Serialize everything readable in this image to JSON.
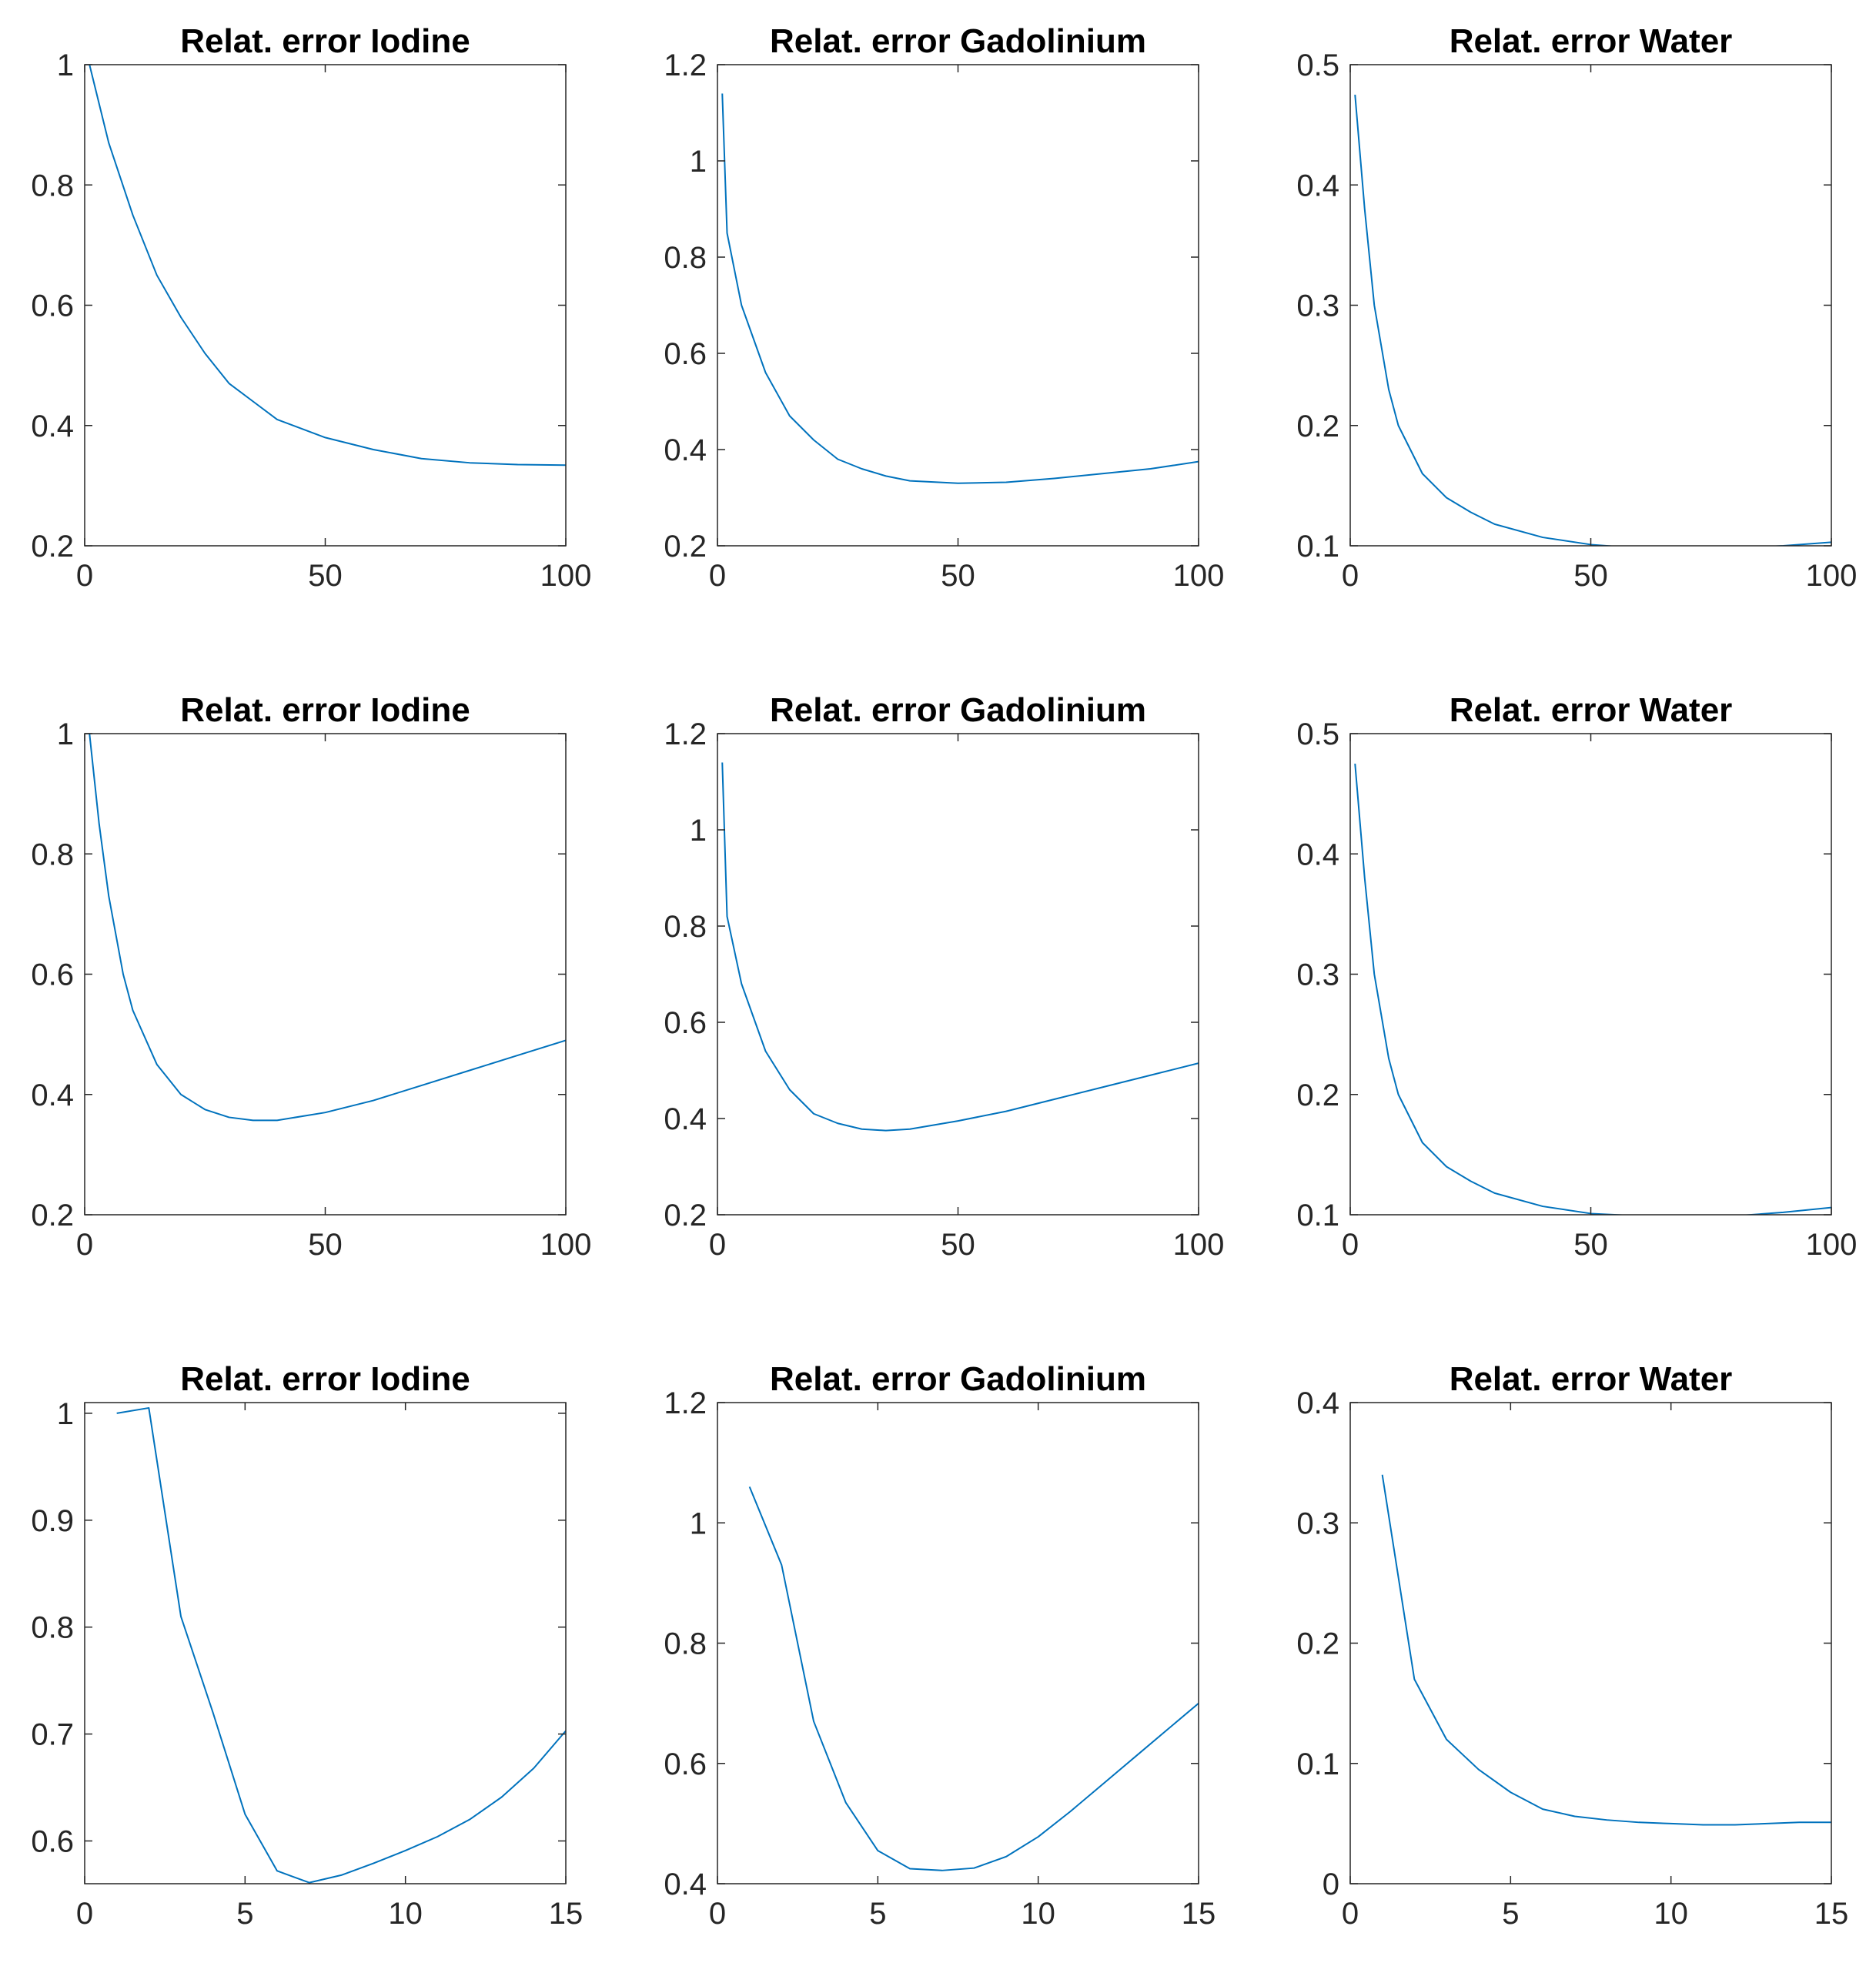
{
  "colors": {
    "line": "#0072BD",
    "axis": "#262626",
    "background": "#ffffff"
  },
  "chart_data": [
    {
      "type": "line",
      "title": "Relat. error Iodine",
      "xlabel": "",
      "ylabel": "",
      "xlim": [
        0,
        100
      ],
      "ylim": [
        0.2,
        1
      ],
      "xticks": [
        0,
        50,
        100
      ],
      "xtick_labels": [
        "0",
        "50",
        "100"
      ],
      "yticks": [
        0.2,
        0.4,
        0.6,
        0.8,
        1
      ],
      "ytick_labels": [
        "0.2",
        "0.4",
        "0.6",
        "0.8",
        "1"
      ],
      "series": [
        {
          "name": "Relat. error Iodine",
          "x": [
            1,
            5,
            10,
            15,
            20,
            25,
            30,
            35,
            40,
            50,
            60,
            70,
            80,
            90,
            100
          ],
          "y": [
            1.0,
            0.87,
            0.75,
            0.65,
            0.58,
            0.52,
            0.47,
            0.44,
            0.41,
            0.38,
            0.36,
            0.345,
            0.338,
            0.335,
            0.334
          ]
        }
      ]
    },
    {
      "type": "line",
      "title": "Relat. error Gadolinium",
      "xlabel": "",
      "ylabel": "",
      "xlim": [
        0,
        100
      ],
      "ylim": [
        0.2,
        1.2
      ],
      "xticks": [
        0,
        50,
        100
      ],
      "xtick_labels": [
        "0",
        "50",
        "100"
      ],
      "yticks": [
        0.2,
        0.4,
        0.6,
        0.8,
        1,
        1.2
      ],
      "ytick_labels": [
        "0.2",
        "0.4",
        "0.6",
        "0.8",
        "1",
        "1.2"
      ],
      "series": [
        {
          "name": "Relat. error Gadolinium",
          "x": [
            1,
            2,
            5,
            10,
            15,
            20,
            25,
            30,
            35,
            40,
            50,
            60,
            70,
            80,
            90,
            100
          ],
          "y": [
            1.14,
            0.85,
            0.7,
            0.56,
            0.47,
            0.42,
            0.38,
            0.36,
            0.345,
            0.335,
            0.33,
            0.332,
            0.34,
            0.35,
            0.36,
            0.375
          ]
        }
      ]
    },
    {
      "type": "line",
      "title": "Relat. error Water",
      "xlabel": "",
      "ylabel": "",
      "xlim": [
        0,
        100
      ],
      "ylim": [
        0.1,
        0.5
      ],
      "xticks": [
        0,
        50,
        100
      ],
      "xtick_labels": [
        "0",
        "50",
        "100"
      ],
      "yticks": [
        0.1,
        0.2,
        0.3,
        0.4,
        0.5
      ],
      "ytick_labels": [
        "0.1",
        "0.2",
        "0.3",
        "0.4",
        "0.5"
      ],
      "series": [
        {
          "name": "Relat. error Water",
          "x": [
            1,
            3,
            5,
            8,
            10,
            15,
            20,
            25,
            30,
            40,
            50,
            60,
            70,
            80,
            90,
            100
          ],
          "y": [
            0.475,
            0.38,
            0.3,
            0.23,
            0.2,
            0.16,
            0.14,
            0.128,
            0.118,
            0.107,
            0.101,
            0.098,
            0.097,
            0.098,
            0.1,
            0.103
          ]
        }
      ]
    },
    {
      "type": "line",
      "title": "Relat. error Iodine",
      "xlabel": "",
      "ylabel": "",
      "xlim": [
        0,
        100
      ],
      "ylim": [
        0.2,
        1
      ],
      "xticks": [
        0,
        50,
        100
      ],
      "xtick_labels": [
        "0",
        "50",
        "100"
      ],
      "yticks": [
        0.2,
        0.4,
        0.6,
        0.8,
        1
      ],
      "ytick_labels": [
        "0.2",
        "0.4",
        "0.6",
        "0.8",
        "1"
      ],
      "series": [
        {
          "name": "Relat. error Iodine",
          "x": [
            1,
            3,
            5,
            8,
            10,
            15,
            20,
            25,
            30,
            35,
            40,
            50,
            60,
            70,
            80,
            90,
            100
          ],
          "y": [
            1.0,
            0.85,
            0.73,
            0.6,
            0.54,
            0.45,
            0.4,
            0.375,
            0.362,
            0.357,
            0.357,
            0.37,
            0.39,
            0.415,
            0.44,
            0.465,
            0.49
          ]
        }
      ]
    },
    {
      "type": "line",
      "title": "Relat. error Gadolinium",
      "xlabel": "",
      "ylabel": "",
      "xlim": [
        0,
        100
      ],
      "ylim": [
        0.2,
        1.2
      ],
      "xticks": [
        0,
        50,
        100
      ],
      "xtick_labels": [
        "0",
        "50",
        "100"
      ],
      "yticks": [
        0.2,
        0.4,
        0.6,
        0.8,
        1,
        1.2
      ],
      "ytick_labels": [
        "0.2",
        "0.4",
        "0.6",
        "0.8",
        "1",
        "1.2"
      ],
      "series": [
        {
          "name": "Relat. error Gadolinium",
          "x": [
            1,
            2,
            5,
            10,
            15,
            20,
            25,
            30,
            35,
            40,
            50,
            60,
            70,
            80,
            90,
            100
          ],
          "y": [
            1.14,
            0.82,
            0.68,
            0.54,
            0.46,
            0.41,
            0.39,
            0.378,
            0.375,
            0.378,
            0.395,
            0.415,
            0.44,
            0.465,
            0.49,
            0.515
          ]
        }
      ]
    },
    {
      "type": "line",
      "title": "Relat. error Water",
      "xlabel": "",
      "ylabel": "",
      "xlim": [
        0,
        100
      ],
      "ylim": [
        0.1,
        0.5
      ],
      "xticks": [
        0,
        50,
        100
      ],
      "xtick_labels": [
        "0",
        "50",
        "100"
      ],
      "yticks": [
        0.1,
        0.2,
        0.3,
        0.4,
        0.5
      ],
      "ytick_labels": [
        "0.1",
        "0.2",
        "0.3",
        "0.4",
        "0.5"
      ],
      "series": [
        {
          "name": "Relat. error Water",
          "x": [
            1,
            3,
            5,
            8,
            10,
            15,
            20,
            25,
            30,
            40,
            50,
            60,
            70,
            80,
            90,
            100
          ],
          "y": [
            0.475,
            0.38,
            0.3,
            0.23,
            0.2,
            0.16,
            0.14,
            0.128,
            0.118,
            0.107,
            0.101,
            0.099,
            0.098,
            0.099,
            0.102,
            0.106
          ]
        }
      ]
    },
    {
      "type": "line",
      "title": "Relat. error Iodine",
      "xlabel": "",
      "ylabel": "",
      "xlim": [
        0,
        15
      ],
      "ylim": [
        0.56,
        1.01
      ],
      "xticks": [
        0,
        5,
        10,
        15
      ],
      "xtick_labels": [
        "0",
        "5",
        "10",
        "15"
      ],
      "yticks": [
        0.6,
        0.7,
        0.8,
        0.9,
        1
      ],
      "ytick_labels": [
        "0.6",
        "0.7",
        "0.8",
        "0.9",
        "1"
      ],
      "series": [
        {
          "name": "Relat. error Iodine",
          "x": [
            1,
            2,
            3,
            4,
            5,
            6,
            7,
            8,
            9,
            10,
            11,
            12,
            13,
            14,
            15
          ],
          "y": [
            1.0,
            1.005,
            0.81,
            0.72,
            0.625,
            0.572,
            0.561,
            0.568,
            0.579,
            0.591,
            0.604,
            0.62,
            0.641,
            0.668,
            0.703
          ]
        }
      ]
    },
    {
      "type": "line",
      "title": "Relat. error Gadolinium",
      "xlabel": "",
      "ylabel": "",
      "xlim": [
        0,
        15
      ],
      "ylim": [
        0.4,
        1.2
      ],
      "xticks": [
        0,
        5,
        10,
        15
      ],
      "xtick_labels": [
        "0",
        "5",
        "10",
        "15"
      ],
      "yticks": [
        0.4,
        0.6,
        0.8,
        1,
        1.2
      ],
      "ytick_labels": [
        "0.4",
        "0.6",
        "0.8",
        "1",
        "1.2"
      ],
      "series": [
        {
          "name": "Relat. error Gadolinium",
          "x": [
            1,
            2,
            3,
            4,
            5,
            6,
            7,
            8,
            9,
            10,
            11,
            12,
            13,
            14,
            15
          ],
          "y": [
            1.06,
            0.93,
            0.67,
            0.535,
            0.455,
            0.425,
            0.422,
            0.426,
            0.445,
            0.478,
            0.52,
            0.565,
            0.61,
            0.655,
            0.7
          ]
        }
      ]
    },
    {
      "type": "line",
      "title": "Relat. error Water",
      "xlabel": "",
      "ylabel": "",
      "xlim": [
        0,
        15
      ],
      "ylim": [
        0,
        0.4
      ],
      "xticks": [
        0,
        5,
        10,
        15
      ],
      "xtick_labels": [
        "0",
        "5",
        "10",
        "15"
      ],
      "yticks": [
        0,
        0.1,
        0.2,
        0.3,
        0.4
      ],
      "ytick_labels": [
        "0",
        "0.1",
        "0.2",
        "0.3",
        "0.4"
      ],
      "series": [
        {
          "name": "Relat. error Water",
          "x": [
            1,
            2,
            3,
            4,
            5,
            6,
            7,
            8,
            9,
            10,
            11,
            12,
            13,
            14,
            15
          ],
          "y": [
            0.34,
            0.17,
            0.12,
            0.095,
            0.076,
            0.062,
            0.056,
            0.053,
            0.051,
            0.05,
            0.049,
            0.049,
            0.05,
            0.051,
            0.051
          ]
        }
      ]
    }
  ]
}
